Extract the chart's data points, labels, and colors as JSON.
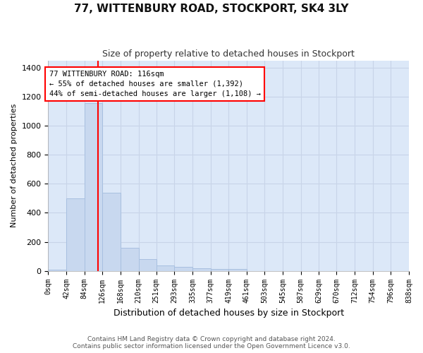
{
  "title": "77, WITTENBURY ROAD, STOCKPORT, SK4 3LY",
  "subtitle": "Size of property relative to detached houses in Stockport",
  "xlabel": "Distribution of detached houses by size in Stockport",
  "ylabel": "Number of detached properties",
  "footer_line1": "Contains HM Land Registry data © Crown copyright and database right 2024.",
  "footer_line2": "Contains public sector information licensed under the Open Government Licence v3.0.",
  "bar_color": "#c8d8ef",
  "bar_edge_color": "#a8c0e0",
  "grid_color": "#c8d4e8",
  "vline_color": "red",
  "vline_x": 116,
  "annotation_text": "77 WITTENBURY ROAD: 116sqm\n← 55% of detached houses are smaller (1,392)\n44% of semi-detached houses are larger (1,108) →",
  "bin_edges": [
    0,
    42,
    84,
    126,
    168,
    210,
    251,
    293,
    335,
    377,
    419,
    461,
    503,
    545,
    587,
    629,
    670,
    712,
    754,
    796,
    838
  ],
  "bar_heights": [
    10,
    500,
    1155,
    540,
    160,
    80,
    35,
    28,
    20,
    13,
    13,
    0,
    0,
    0,
    0,
    0,
    0,
    0,
    0,
    0
  ],
  "ylim": [
    0,
    1450
  ],
  "yticks": [
    0,
    200,
    400,
    600,
    800,
    1000,
    1200,
    1400
  ],
  "background_color": "#ffffff",
  "plot_background_color": "#dce8f8"
}
